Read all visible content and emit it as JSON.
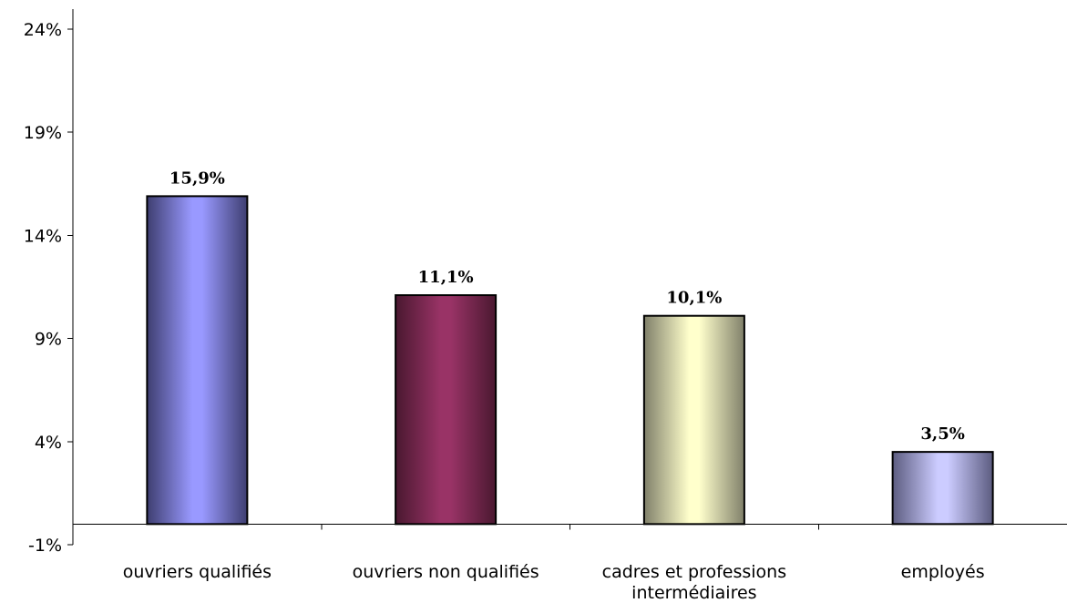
{
  "chart_data": {
    "type": "bar",
    "title": "",
    "xlabel": "",
    "ylabel": "",
    "ylim": [
      -1,
      24
    ],
    "yticks": [
      -1,
      4,
      9,
      14,
      19,
      24
    ],
    "ytick_labels": [
      "-1%",
      "4%",
      "9%",
      "14%",
      "19%",
      "24%"
    ],
    "grid": false,
    "legend": "none",
    "categories": [
      [
        "ouvriers qualifiés"
      ],
      [
        "ouvriers non qualifiés"
      ],
      [
        "cadres et professions",
        "intermédiaires"
      ],
      [
        "employés"
      ]
    ],
    "values": [
      15.9,
      11.1,
      10.1,
      3.5
    ],
    "data_labels": [
      "15,9%",
      "11,1%",
      "10,1%",
      "3,5%"
    ],
    "colors": [
      {
        "base": "#9999ff",
        "edge": "#3e3e70"
      },
      {
        "base": "#993366",
        "edge": "#4a1830"
      },
      {
        "base": "#ffffcc",
        "edge": "#80806a"
      },
      {
        "base": "#ccccff",
        "edge": "#5c5c80"
      }
    ]
  }
}
